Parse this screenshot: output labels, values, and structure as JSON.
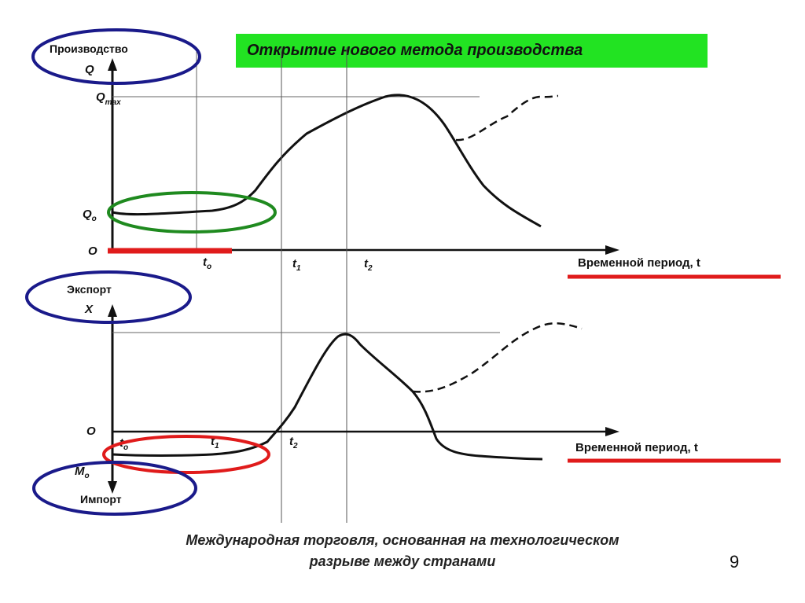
{
  "slide": {
    "title": "Открытие нового метода производства",
    "caption_line1": "Международная торговля, основанная на технологическом",
    "caption_line2": "разрыве между странами",
    "page_number": "9"
  },
  "top_graph": {
    "y_label": "Производство",
    "y_symbol": "Q",
    "qmax": "Q",
    "qmax_sub": "max",
    "q0": "Q",
    "q0_sub": "o",
    "origin": "O",
    "t0": "t",
    "t0_sub": "o",
    "t1": "t",
    "t1_sub": "1",
    "t2": "t",
    "t2_sub": "2",
    "x_label": "Временной период, t"
  },
  "bottom_graph": {
    "y_label_top": "Экспорт",
    "y_symbol": "X",
    "origin": "O",
    "t0": "t",
    "t0_sub": "o",
    "t1": "t",
    "t1_sub": "1",
    "t2": "t",
    "t2_sub": "2",
    "m0": "M",
    "m0_sub": "o",
    "y_label_bottom": "Импорт",
    "x_label": "Временной период, t"
  },
  "colors": {
    "banner": "#22e322",
    "circle_blue": "#1a1a8a",
    "circle_green": "#1f8a1f",
    "circle_red": "#e01b1b",
    "underline_red": "#e01b1b"
  }
}
